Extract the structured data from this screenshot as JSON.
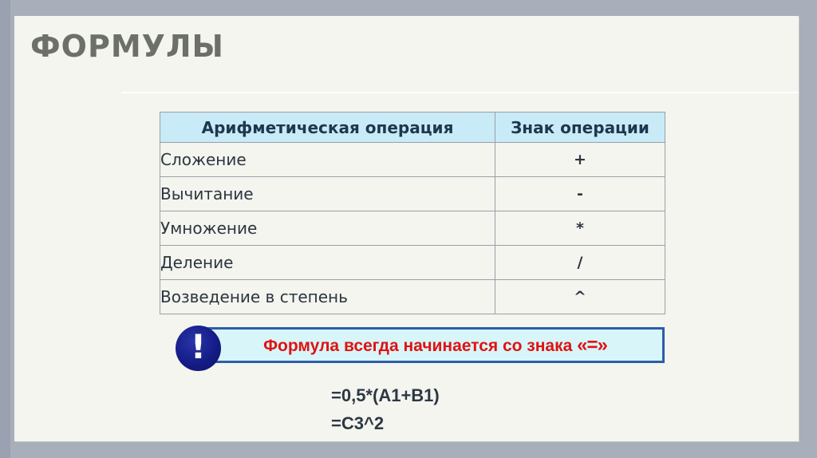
{
  "slide": {
    "title": "ФОРМУЛЫ",
    "table": {
      "headers": [
        "Арифметическая операция",
        "Знак операции"
      ],
      "rows": [
        {
          "operation": "Сложение",
          "sign": "+"
        },
        {
          "operation": "Вычитание",
          "sign": "-"
        },
        {
          "operation": "Умножение",
          "sign": "*"
        },
        {
          "operation": "Деление",
          "sign": "/"
        },
        {
          "operation": "Возведение в степень",
          "sign": "^"
        }
      ]
    },
    "note": {
      "icon": "exclamation-icon",
      "icon_glyph": "!",
      "text": "Формула всегда начинается со знака ",
      "emphasis": "«=»"
    },
    "examples": [
      "=0,5*(A1+B1)",
      "=C3^2"
    ],
    "colors": {
      "frame_background": "#a9aebb",
      "slide_background": "#f3f5ee",
      "title_text": "#6d7069",
      "table_header_background": "#c9eaf7",
      "table_header_text": "#1c3850",
      "table_border": "#9aa0a6",
      "note_background": "#d8f5f9",
      "note_border": "#2e5cac",
      "note_text": "#e01212",
      "note_icon_background": "#141c87",
      "example_text": "#2e3744"
    }
  }
}
